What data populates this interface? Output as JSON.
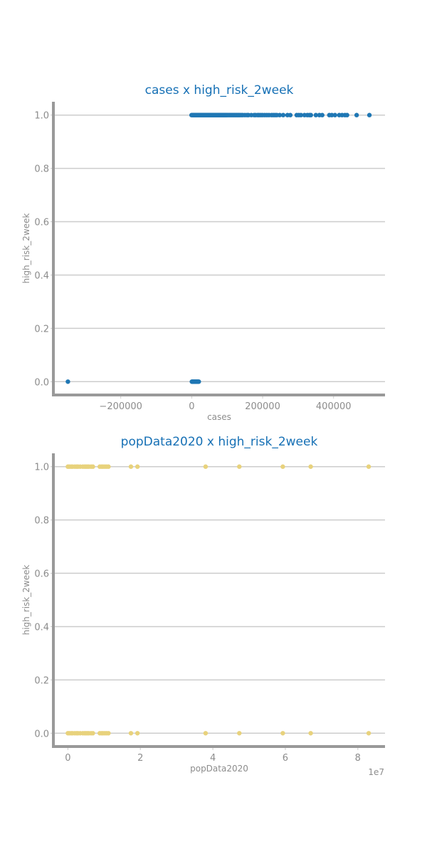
{
  "chart_data": [
    {
      "type": "scatter",
      "title": "cases x high_risk_2week",
      "xlabel": "cases",
      "ylabel": "high_risk_2week",
      "xlim": [
        -390000,
        545000
      ],
      "ylim": [
        -0.05,
        1.05
      ],
      "x_ticks": [
        -200000,
        0,
        200000,
        400000
      ],
      "x_tick_labels": [
        "−200000",
        "0",
        "200000",
        "400000"
      ],
      "y_ticks": [
        0.0,
        0.2,
        0.4,
        0.6,
        0.8,
        1.0
      ],
      "y_tick_labels": [
        "0.0",
        "0.2",
        "0.4",
        "0.6",
        "0.8",
        "1.0"
      ],
      "offset_text": "",
      "grid": "horizontal",
      "colors": {
        "points": "#1f77b4",
        "title": "#1670b5",
        "axis": "#999999",
        "grid": "#cccccc"
      },
      "series": [
        {
          "points": [
            [
              -349000,
              0
            ],
            [
              500,
              0
            ],
            [
              2000,
              0
            ],
            [
              4000,
              0
            ],
            [
              6000,
              0
            ],
            [
              8000,
              0
            ],
            [
              10000,
              0
            ],
            [
              12000,
              0
            ],
            [
              14000,
              0
            ],
            [
              16000,
              0
            ],
            [
              18000,
              0
            ],
            [
              20000,
              0
            ],
            [
              -500,
              1
            ],
            [
              2000,
              1
            ],
            [
              4000,
              1
            ],
            [
              6000,
              1
            ],
            [
              8000,
              1
            ],
            [
              10000,
              1
            ],
            [
              12000,
              1
            ],
            [
              14000,
              1
            ],
            [
              16000,
              1
            ],
            [
              18000,
              1
            ],
            [
              20000,
              1
            ],
            [
              22000,
              1
            ],
            [
              24000,
              1
            ],
            [
              26000,
              1
            ],
            [
              28000,
              1
            ],
            [
              30000,
              1
            ],
            [
              32000,
              1
            ],
            [
              34000,
              1
            ],
            [
              36000,
              1
            ],
            [
              38000,
              1
            ],
            [
              40000,
              1
            ],
            [
              42000,
              1
            ],
            [
              44000,
              1
            ],
            [
              46000,
              1
            ],
            [
              48000,
              1
            ],
            [
              50000,
              1
            ],
            [
              52000,
              1
            ],
            [
              54000,
              1
            ],
            [
              56000,
              1
            ],
            [
              58000,
              1
            ],
            [
              60000,
              1
            ],
            [
              62000,
              1
            ],
            [
              64000,
              1
            ],
            [
              66000,
              1
            ],
            [
              68000,
              1
            ],
            [
              70000,
              1
            ],
            [
              72000,
              1
            ],
            [
              74000,
              1
            ],
            [
              76000,
              1
            ],
            [
              78000,
              1
            ],
            [
              80000,
              1
            ],
            [
              82000,
              1
            ],
            [
              84000,
              1
            ],
            [
              86000,
              1
            ],
            [
              88000,
              1
            ],
            [
              90000,
              1
            ],
            [
              92000,
              1
            ],
            [
              94000,
              1
            ],
            [
              96000,
              1
            ],
            [
              98000,
              1
            ],
            [
              100000,
              1
            ],
            [
              103000,
              1
            ],
            [
              106000,
              1
            ],
            [
              109000,
              1
            ],
            [
              112000,
              1
            ],
            [
              115000,
              1
            ],
            [
              118000,
              1
            ],
            [
              121000,
              1
            ],
            [
              124000,
              1
            ],
            [
              127000,
              1
            ],
            [
              130000,
              1
            ],
            [
              133000,
              1
            ],
            [
              136000,
              1
            ],
            [
              140000,
              1
            ],
            [
              144000,
              1
            ],
            [
              150000,
              1
            ],
            [
              156000,
              1
            ],
            [
              160000,
              1
            ],
            [
              168000,
              1
            ],
            [
              176000,
              1
            ],
            [
              180000,
              1
            ],
            [
              186000,
              1
            ],
            [
              190000,
              1
            ],
            [
              195000,
              1
            ],
            [
              200000,
              1
            ],
            [
              206000,
              1
            ],
            [
              212000,
              1
            ],
            [
              218000,
              1
            ],
            [
              225000,
              1
            ],
            [
              230000,
              1
            ],
            [
              235000,
              1
            ],
            [
              240000,
              1
            ],
            [
              248000,
              1
            ],
            [
              258000,
              1
            ],
            [
              270000,
              1
            ],
            [
              278000,
              1
            ],
            [
              296000,
              1
            ],
            [
              302000,
              1
            ],
            [
              308000,
              1
            ],
            [
              318000,
              1
            ],
            [
              326000,
              1
            ],
            [
              332000,
              1
            ],
            [
              336000,
              1
            ],
            [
              350000,
              1
            ],
            [
              360000,
              1
            ],
            [
              368000,
              1
            ],
            [
              388000,
              1
            ],
            [
              395000,
              1
            ],
            [
              404000,
              1
            ],
            [
              416000,
              1
            ],
            [
              424000,
              1
            ],
            [
              432000,
              1
            ],
            [
              438000,
              1
            ],
            [
              465000,
              1
            ],
            [
              501000,
              1
            ]
          ]
        }
      ]
    },
    {
      "type": "scatter",
      "title": "popData2020 x high_risk_2week",
      "xlabel": "popData2020",
      "ylabel": "high_risk_2week",
      "xlim": [
        -4000000,
        87500000
      ],
      "ylim": [
        -0.05,
        1.05
      ],
      "x_ticks": [
        0,
        20000000,
        40000000,
        60000000,
        80000000
      ],
      "x_tick_labels": [
        "0",
        "2",
        "4",
        "6",
        "8"
      ],
      "y_ticks": [
        0.0,
        0.2,
        0.4,
        0.6,
        0.8,
        1.0
      ],
      "y_tick_labels": [
        "0.0",
        "0.2",
        "0.4",
        "0.6",
        "0.8",
        "1.0"
      ],
      "offset_text": "1e7",
      "grid": "horizontal",
      "colors": {
        "points": "#e8d27c",
        "title": "#1670b5",
        "axis": "#999999",
        "grid": "#cccccc"
      },
      "series": [
        {
          "points": [
            [
              0,
              0
            ],
            [
              400000,
              0
            ],
            [
              900000,
              0
            ],
            [
              1300000,
              0
            ],
            [
              1900000,
              0
            ],
            [
              2400000,
              0
            ],
            [
              2800000,
              0
            ],
            [
              3400000,
              0
            ],
            [
              4100000,
              0
            ],
            [
              4600000,
              0
            ],
            [
              5000000,
              0
            ],
            [
              5400000,
              0
            ],
            [
              5800000,
              0
            ],
            [
              6400000,
              0
            ],
            [
              6900000,
              0
            ],
            [
              8800000,
              0
            ],
            [
              9300000,
              0
            ],
            [
              9700000,
              0
            ],
            [
              10200000,
              0
            ],
            [
              10700000,
              0
            ],
            [
              11200000,
              0
            ],
            [
              17400000,
              0
            ],
            [
              19200000,
              0
            ],
            [
              38000000,
              0
            ],
            [
              47300000,
              0
            ],
            [
              59300000,
              0
            ],
            [
              67000000,
              0
            ],
            [
              83000000,
              0
            ],
            [
              0,
              1
            ],
            [
              400000,
              1
            ],
            [
              900000,
              1
            ],
            [
              1300000,
              1
            ],
            [
              1900000,
              1
            ],
            [
              2400000,
              1
            ],
            [
              2800000,
              1
            ],
            [
              3400000,
              1
            ],
            [
              4100000,
              1
            ],
            [
              4600000,
              1
            ],
            [
              5000000,
              1
            ],
            [
              5400000,
              1
            ],
            [
              5800000,
              1
            ],
            [
              6400000,
              1
            ],
            [
              6900000,
              1
            ],
            [
              8800000,
              1
            ],
            [
              9300000,
              1
            ],
            [
              9700000,
              1
            ],
            [
              10200000,
              1
            ],
            [
              10700000,
              1
            ],
            [
              11200000,
              1
            ],
            [
              17400000,
              1
            ],
            [
              19200000,
              1
            ],
            [
              38000000,
              1
            ],
            [
              47300000,
              1
            ],
            [
              59300000,
              1
            ],
            [
              67000000,
              1
            ],
            [
              83000000,
              1
            ]
          ]
        }
      ]
    }
  ]
}
